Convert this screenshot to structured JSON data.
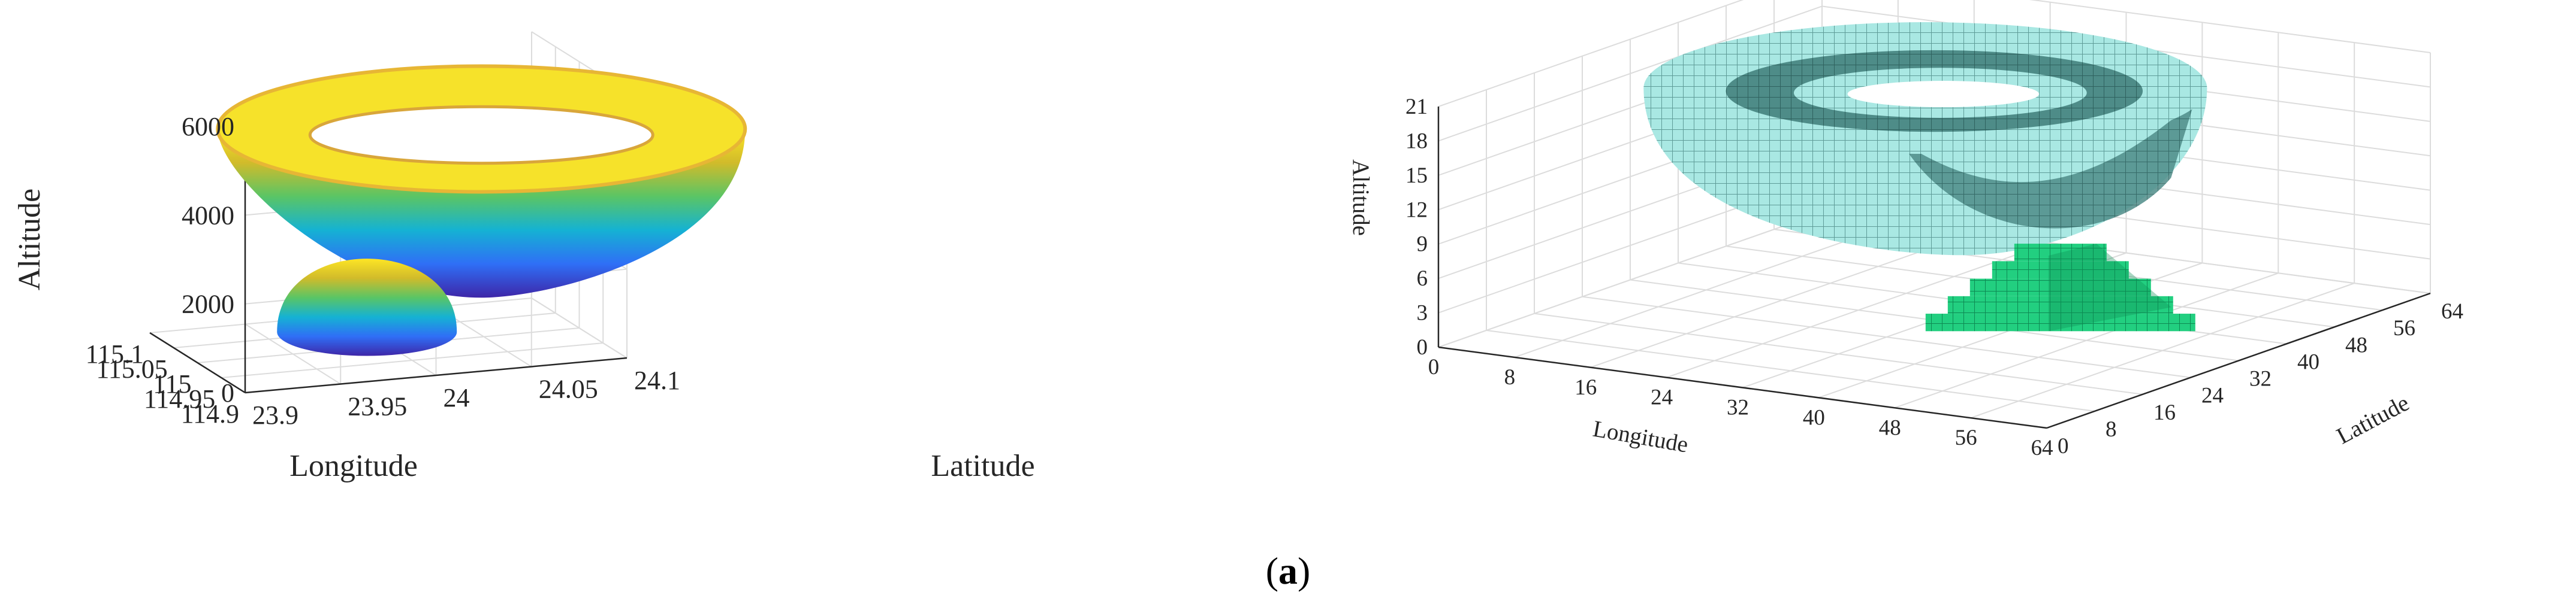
{
  "chart_data": [
    {
      "type": "scatter3d",
      "title": "",
      "xlabel": "Longitude",
      "ylabel": "Latitude",
      "zlabel": "Altitude",
      "x_ticks": [
        "114.9",
        "114.95",
        "115",
        "115.05",
        "115.1"
      ],
      "y_ticks": [
        "23.9",
        "23.95",
        "24",
        "24.05",
        "24.1"
      ],
      "z_ticks": [
        "0",
        "2000",
        "4000",
        "6000"
      ],
      "xlim": [
        114.9,
        115.1
      ],
      "ylim": [
        23.9,
        24.1
      ],
      "zlim": [
        0,
        6000
      ],
      "grid": true,
      "colormap": [
        "#3e26a8",
        "#2f6ff6",
        "#15b2d3",
        "#5ac565",
        "#d1bb2a",
        "#fde525"
      ],
      "shapes": [
        {
          "name": "",
          "kind": "bowl",
          "center": [
            114.985,
            24.045
          ],
          "rx": 0.08,
          "ry": 0.022,
          "z_bottom": 1000,
          "z_top": 4800
        },
        {
          "name": "",
          "kind": "dome",
          "center": [
            115.045,
            24.0
          ],
          "radius": 0.03,
          "z_bottom": 0,
          "z_top": 2000
        }
      ]
    },
    {
      "type": "voxel3d",
      "title": "",
      "xlabel": "Longitude",
      "ylabel": "Latitude",
      "zlabel": "Altitude",
      "x_ticks": [
        "0",
        "8",
        "16",
        "24",
        "32",
        "40",
        "48",
        "56",
        "64"
      ],
      "y_ticks": [
        "0",
        "8",
        "16",
        "24",
        "32",
        "40",
        "48",
        "56",
        "64"
      ],
      "z_ticks": [
        "0",
        "3",
        "6",
        "9",
        "12",
        "15",
        "18",
        "21"
      ],
      "xlim": [
        0,
        64
      ],
      "ylim": [
        0,
        64
      ],
      "zlim": [
        0,
        22
      ],
      "grid": true,
      "colors": {
        "bowl": "#9fe3de",
        "bowl_dark": "#4f8f8a",
        "dome": "#1ec97a",
        "dome_dark": "#0c8c52"
      },
      "shapes": [
        {
          "name": "",
          "kind": "bowl",
          "center": [
            26,
            40
          ],
          "radius": 22,
          "z_bottom": 7,
          "z_top": 19
        },
        {
          "name": "",
          "kind": "dome",
          "center": [
            44,
            34
          ],
          "radius": 8,
          "z_bottom": 0,
          "z_top": 8
        }
      ]
    }
  ],
  "caption": {
    "open": "(",
    "letter": "a",
    "close": ")"
  }
}
